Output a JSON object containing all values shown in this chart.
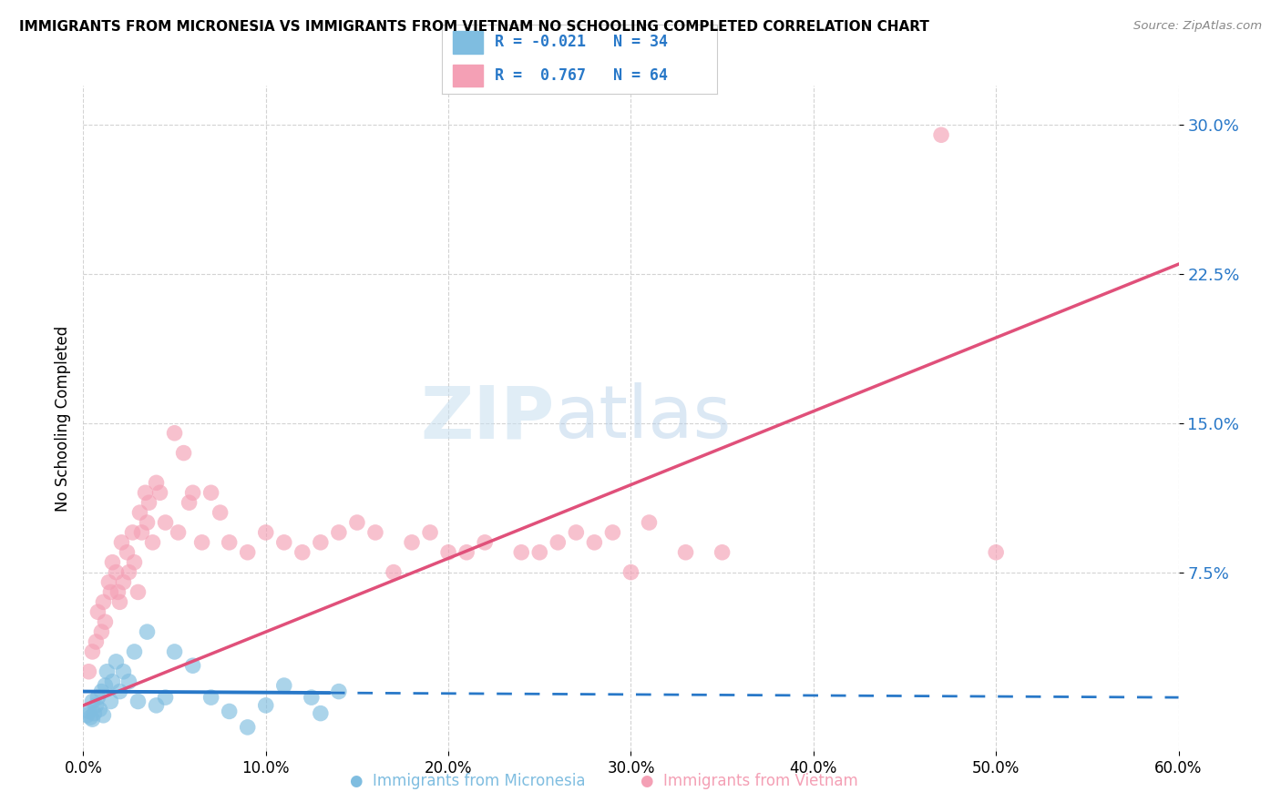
{
  "title": "IMMIGRANTS FROM MICRONESIA VS IMMIGRANTS FROM VIETNAM NO SCHOOLING COMPLETED CORRELATION CHART",
  "source": "Source: ZipAtlas.com",
  "ylabel": "No Schooling Completed",
  "x_tick_vals": [
    0,
    10,
    20,
    30,
    40,
    50,
    60
  ],
  "y_tick_vals": [
    7.5,
    15.0,
    22.5,
    30.0
  ],
  "xlim": [
    0,
    60
  ],
  "ylim": [
    -1.5,
    32
  ],
  "legend_blue_r": -0.021,
  "legend_blue_n": 34,
  "legend_pink_r": 0.767,
  "legend_pink_n": 64,
  "blue_color": "#7fbde0",
  "pink_color": "#f4a0b5",
  "blue_line_color": "#2878c8",
  "pink_line_color": "#e0507a",
  "watermark_zip": "ZIP",
  "watermark_atlas": "atlas",
  "blue_scatter_x": [
    0.2,
    0.3,
    0.4,
    0.5,
    0.5,
    0.6,
    0.7,
    0.8,
    0.9,
    1.0,
    1.1,
    1.2,
    1.3,
    1.5,
    1.6,
    1.8,
    2.0,
    2.2,
    2.5,
    2.8,
    3.0,
    3.5,
    4.0,
    4.5,
    5.0,
    6.0,
    7.0,
    8.0,
    9.0,
    10.0,
    11.0,
    12.5,
    13.0,
    14.0
  ],
  "blue_scatter_y": [
    0.3,
    0.5,
    0.2,
    1.0,
    0.1,
    0.4,
    0.8,
    1.2,
    0.6,
    1.5,
    0.3,
    1.8,
    2.5,
    1.0,
    2.0,
    3.0,
    1.5,
    2.5,
    2.0,
    3.5,
    1.0,
    4.5,
    0.8,
    1.2,
    3.5,
    2.8,
    1.2,
    0.5,
    -0.3,
    0.8,
    1.8,
    1.2,
    0.4,
    1.5
  ],
  "pink_scatter_x": [
    0.3,
    0.5,
    0.7,
    0.8,
    1.0,
    1.1,
    1.2,
    1.4,
    1.5,
    1.6,
    1.8,
    1.9,
    2.0,
    2.1,
    2.2,
    2.4,
    2.5,
    2.7,
    2.8,
    3.0,
    3.1,
    3.2,
    3.4,
    3.5,
    3.6,
    3.8,
    4.0,
    4.2,
    4.5,
    5.0,
    5.2,
    5.5,
    5.8,
    6.0,
    6.5,
    7.0,
    7.5,
    8.0,
    9.0,
    10.0,
    11.0,
    12.0,
    13.0,
    14.0,
    15.0,
    16.0,
    17.0,
    18.0,
    19.0,
    20.0,
    21.0,
    22.0,
    24.0,
    25.0,
    26.0,
    27.0,
    28.0,
    29.0,
    30.0,
    31.0,
    33.0,
    35.0,
    47.0,
    50.0
  ],
  "pink_scatter_y": [
    2.5,
    3.5,
    4.0,
    5.5,
    4.5,
    6.0,
    5.0,
    7.0,
    6.5,
    8.0,
    7.5,
    6.5,
    6.0,
    9.0,
    7.0,
    8.5,
    7.5,
    9.5,
    8.0,
    6.5,
    10.5,
    9.5,
    11.5,
    10.0,
    11.0,
    9.0,
    12.0,
    11.5,
    10.0,
    14.5,
    9.5,
    13.5,
    11.0,
    11.5,
    9.0,
    11.5,
    10.5,
    9.0,
    8.5,
    9.5,
    9.0,
    8.5,
    9.0,
    9.5,
    10.0,
    9.5,
    7.5,
    9.0,
    9.5,
    8.5,
    8.5,
    9.0,
    8.5,
    8.5,
    9.0,
    9.5,
    9.0,
    9.5,
    7.5,
    10.0,
    8.5,
    8.5,
    29.5,
    8.5
  ],
  "pink_trendline_x0": 0,
  "pink_trendline_y0": 0.8,
  "pink_trendline_x1": 60,
  "pink_trendline_y1": 23.0,
  "blue_trendline_x0": 0,
  "blue_trendline_y0": 1.5,
  "blue_trendline_x1": 60,
  "blue_trendline_y1": 1.2,
  "blue_solid_end": 13.5
}
